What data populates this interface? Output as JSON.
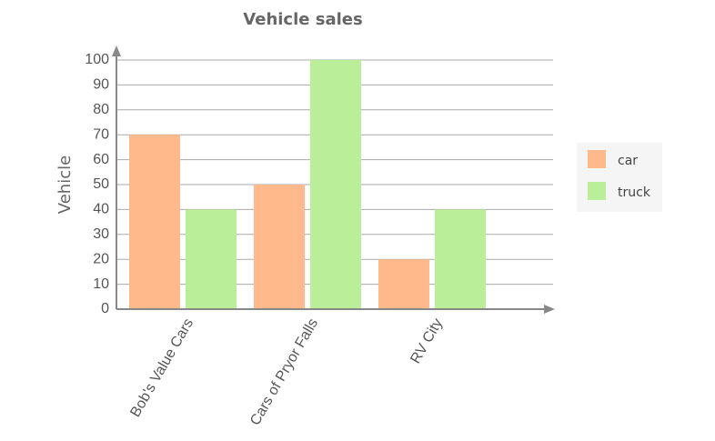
{
  "chart_data": {
    "type": "bar",
    "title": "Vehicle sales",
    "y_label": "Vehicle",
    "categories": [
      "Bob's Value Cars",
      "Cars of Pryor Falls",
      "RV City"
    ],
    "series": [
      {
        "name": "car",
        "color": "#ffb98a",
        "values": [
          70,
          50,
          20
        ]
      },
      {
        "name": "truck",
        "color": "#bbee99",
        "values": [
          40,
          100,
          40
        ]
      }
    ],
    "ylim": [
      0,
      100
    ],
    "yticks": [
      0,
      10,
      20,
      30,
      40,
      50,
      60,
      70,
      80,
      90,
      100
    ],
    "grid": true,
    "legend": "right"
  }
}
